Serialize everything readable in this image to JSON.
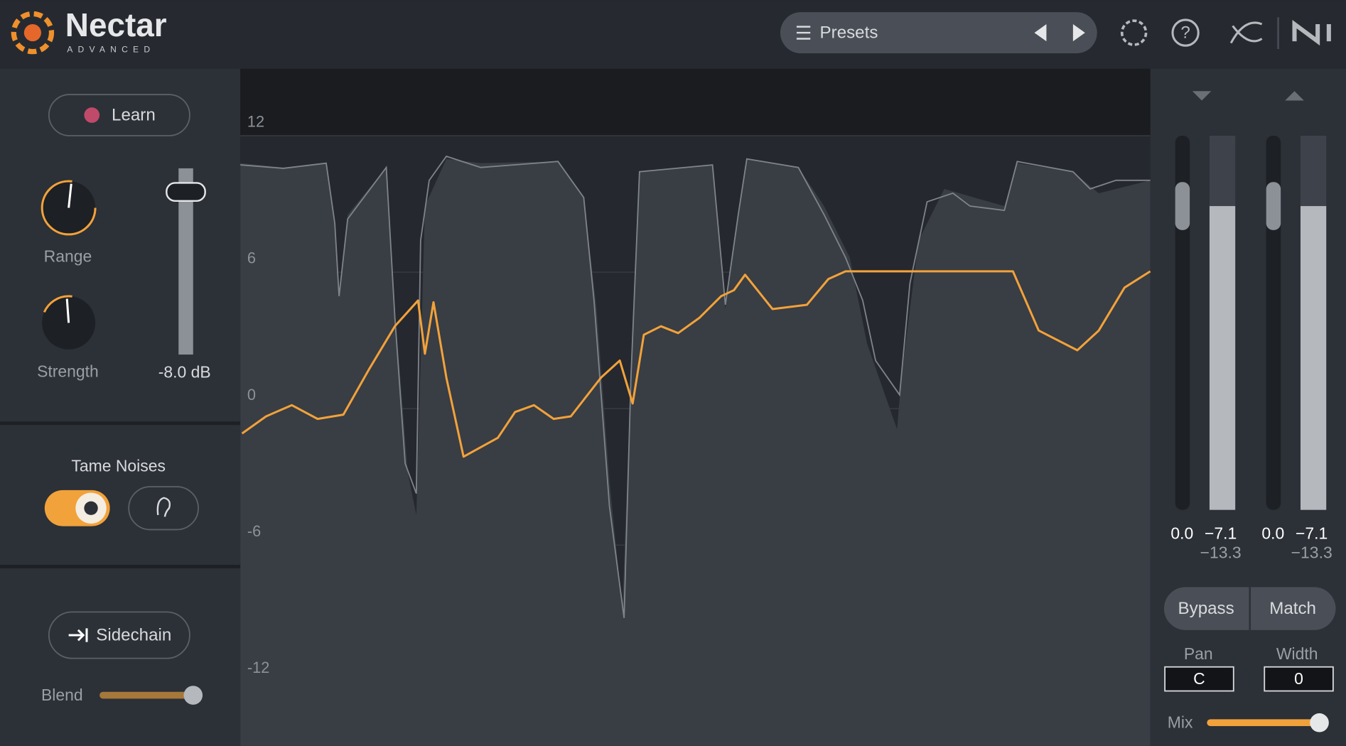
{
  "header": {
    "title": "Nectar",
    "subtitle": "ADVANCED",
    "presets": "Presets"
  },
  "left_panel": {
    "learn": "Learn",
    "range": "Range",
    "strength": "Strength",
    "gain": "-8.0 dB",
    "tame_noises": "Tame Noises",
    "sidechain": "Sidechain",
    "blend": "Blend"
  },
  "display": {
    "grid_labels": [
      "12",
      "6",
      "0",
      "-6",
      "-12"
    ]
  },
  "meters": {
    "input_gain": "0.0",
    "input_peak": "−7.1",
    "input_rms": "−13.3",
    "output_gain": "0.0",
    "output_peak": "−7.1",
    "output_rms": "−13.3"
  },
  "controls": {
    "bypass": "Bypass",
    "match": "Match",
    "pan": "Pan",
    "pan_value": "C",
    "width": "Width",
    "width_value": "0",
    "mix": "Mix"
  }
}
